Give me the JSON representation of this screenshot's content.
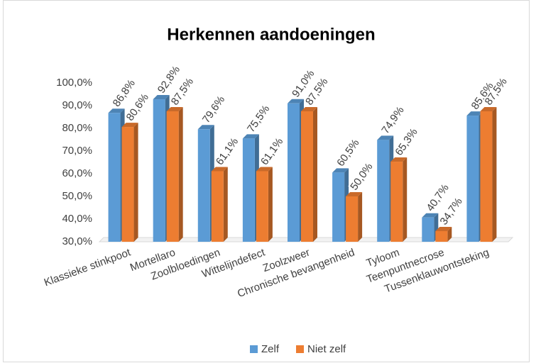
{
  "chart_data": {
    "type": "bar3d",
    "title": "Herkennen aandoeningen",
    "categories": [
      "Klassieke stinkpoot",
      "Mortellaro",
      "Zoolbloedingen",
      "Wittelijndefect",
      "Zoolzweer",
      "Chronische bevangenheid",
      "Tyloom",
      "Teenpuntnecrose",
      "Tussenklauwontsteking"
    ],
    "series": [
      {
        "name": "Zelf",
        "color": "#5b9bd5",
        "values": [
          86.8,
          92.8,
          79.6,
          75.5,
          91.0,
          60.5,
          74.9,
          40.7,
          85.6
        ],
        "value_labels": [
          "86,8%",
          "92,8%",
          "79,6%",
          "75,5%",
          "91,0%",
          "60,5%",
          "74,9%",
          "40,7%",
          "85,6%"
        ]
      },
      {
        "name": "Niet zelf",
        "color": "#ed7d31",
        "values": [
          80.6,
          87.5,
          61.1,
          61.1,
          87.5,
          50.0,
          65.3,
          34.7,
          87.5
        ],
        "value_labels": [
          "80,6%",
          "87,5%",
          "61,1%",
          "61,1%",
          "87,5%",
          "50,0%",
          "65,3%",
          "34,7%",
          "87,5%"
        ]
      }
    ],
    "ylim": [
      30,
      100
    ],
    "yticks": [
      {
        "value": 30,
        "label": "30,0%"
      },
      {
        "value": 40,
        "label": "40,0%"
      },
      {
        "value": 50,
        "label": "50,0%"
      },
      {
        "value": 60,
        "label": "60,0%"
      },
      {
        "value": 70,
        "label": "70,0%"
      },
      {
        "value": 80,
        "label": "80,0%"
      },
      {
        "value": 90,
        "label": "90,0%"
      },
      {
        "value": 100,
        "label": "100,0%"
      }
    ],
    "grid": false,
    "legend": "bottom"
  }
}
